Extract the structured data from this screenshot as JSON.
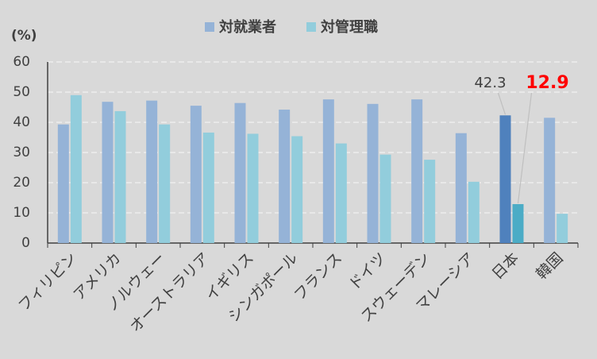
{
  "chart_data": {
    "type": "bar",
    "y_label": "(%)",
    "categories": [
      "フィリピン",
      "アメリカ",
      "ノルウェー",
      "オーストラリア",
      "イギリス",
      "シンガポール",
      "フランス",
      "ドイツ",
      "スウェーデン",
      "マレーシア",
      "日本",
      "韓国"
    ],
    "series": [
      {
        "name": "対就業者",
        "color": "#95b3d7",
        "colors": [
          "#95b3d7",
          "#95b3d7",
          "#95b3d7",
          "#95b3d7",
          "#95b3d7",
          "#95b3d7",
          "#95b3d7",
          "#95b3d7",
          "#95b3d7",
          "#95b3d7",
          "#4f81bd",
          "#95b3d7"
        ],
        "values": [
          39.3,
          46.8,
          47.2,
          45.5,
          46.4,
          44.2,
          47.6,
          46.1,
          47.6,
          36.4,
          42.3,
          41.5
        ],
        "value_labels": [
          null,
          null,
          null,
          null,
          null,
          null,
          null,
          null,
          null,
          null,
          "42.3",
          null
        ],
        "label_color": "#404040"
      },
      {
        "name": "対管理職",
        "color": "#92cddc",
        "colors": [
          "#92cddc",
          "#92cddc",
          "#92cddc",
          "#92cddc",
          "#92cddc",
          "#92cddc",
          "#92cddc",
          "#92cddc",
          "#92cddc",
          "#92cddc",
          "#4bacc6",
          "#92cddc"
        ],
        "values": [
          49.0,
          43.7,
          39.3,
          36.6,
          36.2,
          35.4,
          33.0,
          29.3,
          27.6,
          20.3,
          12.9,
          9.7
        ],
        "value_labels": [
          null,
          null,
          null,
          null,
          null,
          null,
          null,
          null,
          null,
          null,
          "12.9",
          null
        ],
        "label_color": "#ff0000"
      }
    ],
    "ylim": [
      0,
      60
    ],
    "yticks": [
      0,
      10,
      20,
      30,
      40,
      50,
      60
    ],
    "grid": true,
    "legend": "top"
  }
}
